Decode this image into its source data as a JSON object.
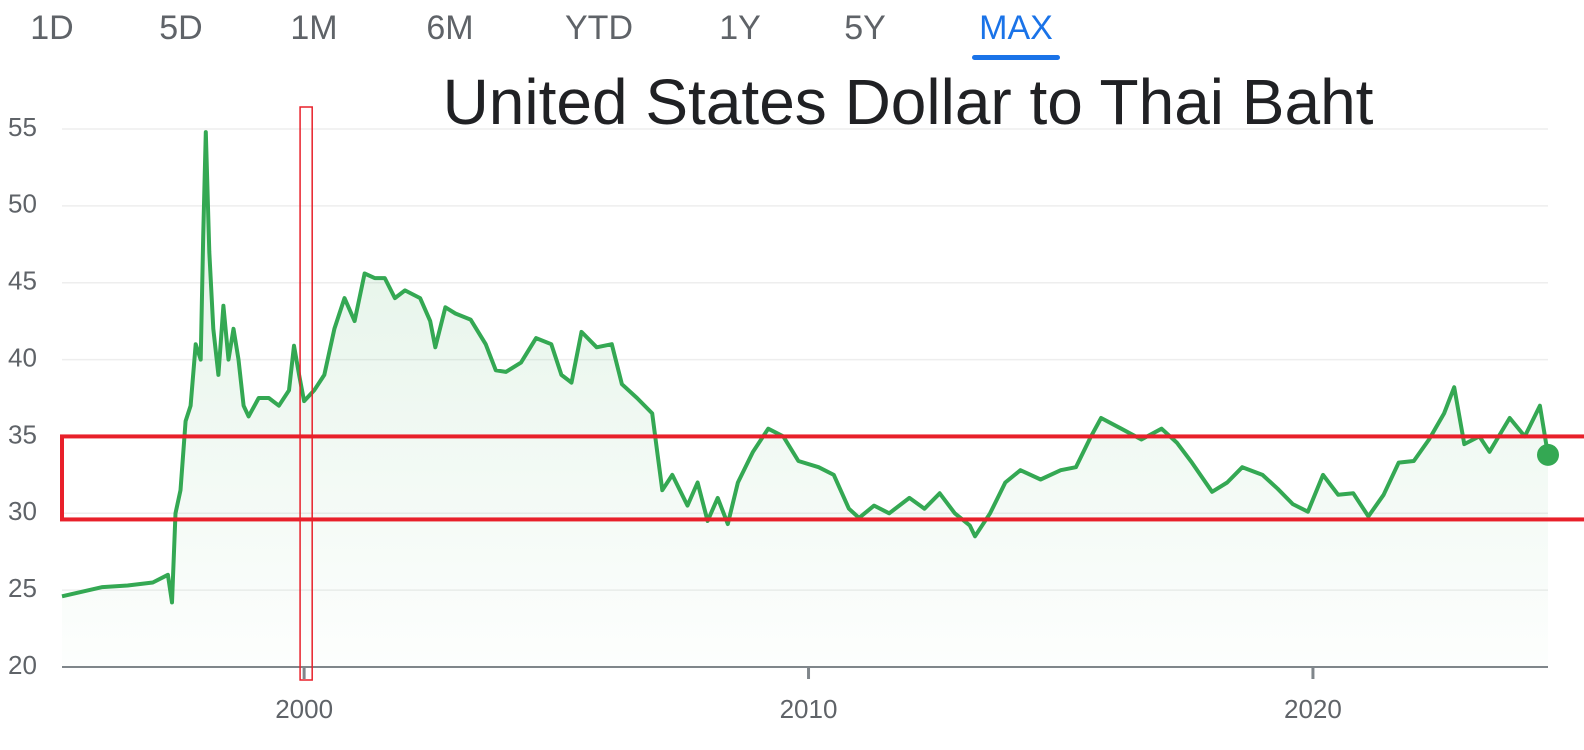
{
  "chart_data": {
    "type": "line",
    "title": "United States Dollar to Thai Baht",
    "range_options": [
      "1D",
      "5D",
      "1M",
      "6M",
      "YTD",
      "1Y",
      "5Y",
      "MAX"
    ],
    "active_range_index": 7,
    "xlim": [
      1995.2,
      2024.66
    ],
    "ylim": [
      20,
      55
    ],
    "xticks": [
      2000,
      2010,
      2020
    ],
    "yticks": [
      20,
      25,
      30,
      35,
      40,
      45,
      50,
      55
    ],
    "grid": true,
    "end_marker": true,
    "highlights": [
      {
        "ylim": [
          29.6,
          35
        ],
        "color": "#e8202a"
      },
      {
        "xlim": [
          1999.92,
          2000.16
        ],
        "color": "#e8202a"
      }
    ],
    "x": [
      1995.2,
      1995.6,
      1996.0,
      1996.5,
      1997.0,
      1997.3,
      1997.38,
      1997.45,
      1997.55,
      1997.65,
      1997.75,
      1997.85,
      1997.95,
      1998.0,
      1998.05,
      1998.12,
      1998.2,
      1998.3,
      1998.4,
      1998.5,
      1998.6,
      1998.7,
      1998.8,
      1998.9,
      1999.1,
      1999.3,
      1999.5,
      1999.7,
      1999.8,
      1999.9,
      2000.0,
      2000.2,
      2000.4,
      2000.6,
      2000.8,
      2001.0,
      2001.2,
      2001.4,
      2001.6,
      2001.8,
      2002.0,
      2002.3,
      2002.5,
      2002.6,
      2002.8,
      2003.0,
      2003.3,
      2003.6,
      2003.8,
      2004.0,
      2004.3,
      2004.6,
      2004.9,
      2005.1,
      2005.3,
      2005.5,
      2005.8,
      2006.1,
      2006.3,
      2006.6,
      2006.9,
      2007.0,
      2007.1,
      2007.3,
      2007.6,
      2007.8,
      2008.0,
      2008.2,
      2008.4,
      2008.6,
      2008.9,
      2009.2,
      2009.5,
      2009.8,
      2010.2,
      2010.5,
      2010.8,
      2011.0,
      2011.3,
      2011.6,
      2012.0,
      2012.3,
      2012.6,
      2012.9,
      2013.2,
      2013.3,
      2013.6,
      2013.9,
      2014.2,
      2014.6,
      2015.0,
      2015.3,
      2015.6,
      2015.8,
      2016.2,
      2016.6,
      2017.0,
      2017.3,
      2017.6,
      2018.0,
      2018.3,
      2018.6,
      2019.0,
      2019.3,
      2019.6,
      2019.9,
      2020.2,
      2020.5,
      2020.8,
      2021.1,
      2021.4,
      2021.7,
      2022.0,
      2022.3,
      2022.6,
      2022.8,
      2023.0,
      2023.3,
      2023.5,
      2023.7,
      2023.9,
      2024.2,
      2024.5,
      2024.66
    ],
    "series": [
      {
        "color": "#34a853",
        "values": [
          24.6,
          24.9,
          25.2,
          25.3,
          25.5,
          26.0,
          24.2,
          30,
          31.5,
          36,
          37,
          41,
          40,
          48,
          54.8,
          47,
          42,
          39,
          43.5,
          40,
          42,
          40,
          37,
          36.3,
          37.5,
          37.5,
          37,
          38,
          40.9,
          39,
          37.3,
          38,
          39,
          42,
          44,
          42.5,
          45.6,
          45.3,
          45.3,
          44,
          44.5,
          44,
          42.5,
          40.8,
          43.4,
          43,
          42.6,
          41,
          39.3,
          39.2,
          39.8,
          41.4,
          41,
          39,
          38.5,
          41.8,
          40.8,
          41,
          38.4,
          37.5,
          36.5,
          34,
          31.5,
          32.5,
          30.5,
          32,
          29.5,
          31,
          29.3,
          32,
          34,
          35.5,
          35,
          33.4,
          33,
          32.5,
          30.3,
          29.7,
          30.5,
          30,
          31,
          30.3,
          31.3,
          30,
          29.2,
          28.5,
          30,
          32,
          32.8,
          32.2,
          32.8,
          33,
          35,
          36.2,
          35.5,
          34.8,
          35.5,
          34.6,
          33.3,
          31.4,
          32,
          33,
          32.5,
          31.6,
          30.6,
          30.1,
          32.5,
          31.2,
          31.3,
          29.8,
          31.2,
          33.3,
          33.4,
          34.8,
          36.5,
          38.2,
          34.5,
          35,
          34,
          35.1,
          36.2,
          35,
          37,
          33.8
        ]
      }
    ]
  }
}
